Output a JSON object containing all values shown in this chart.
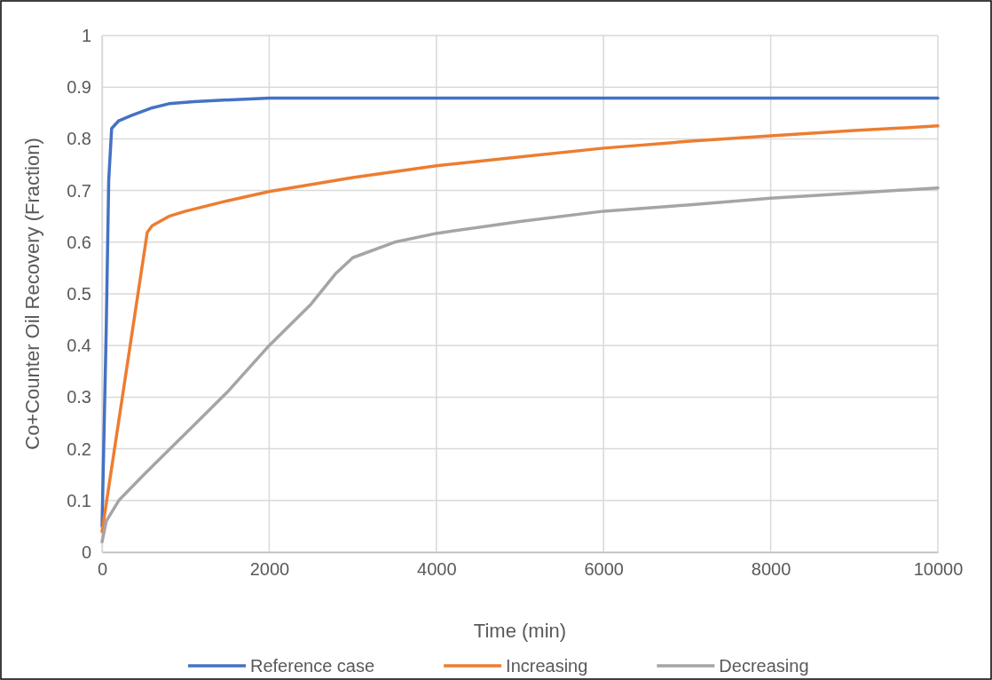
{
  "chart_data": {
    "type": "line",
    "xlabel": "Time (min)",
    "ylabel": "Co+Counter Oil Recovery (Fraction)",
    "xlim": [
      0,
      10000
    ],
    "xticks": [
      0,
      2000,
      4000,
      6000,
      8000,
      10000
    ],
    "ylim": [
      0,
      1
    ],
    "yticks": [
      0,
      0.1,
      0.2,
      0.3,
      0.4,
      0.5,
      0.6,
      0.7,
      0.8,
      0.9,
      1
    ],
    "grid": true,
    "legend": "bottom",
    "marker": "none",
    "line_style": "solid",
    "series": [
      {
        "name": "Reference case",
        "color": "#4472c4",
        "x": [
          0,
          50,
          80,
          115,
          200,
          350,
          600,
          800,
          1100,
          1450,
          2000,
          10000
        ],
        "values": [
          0.05,
          0.43,
          0.72,
          0.82,
          0.835,
          0.845,
          0.86,
          0.868,
          0.872,
          0.875,
          0.879,
          0.879
        ]
      },
      {
        "name": "Increasing",
        "color": "#ed7d31",
        "x": [
          0,
          541,
          600,
          800,
          1000,
          1500,
          2000,
          3000,
          4000,
          5000,
          6000,
          7000,
          8000,
          9000,
          10000
        ],
        "values": [
          0.04,
          0.619,
          0.632,
          0.65,
          0.66,
          0.68,
          0.698,
          0.725,
          0.748,
          0.765,
          0.782,
          0.795,
          0.806,
          0.816,
          0.825
        ]
      },
      {
        "name": "Decreasing",
        "color": "#a5a5a5",
        "x": [
          0,
          50,
          200,
          500,
          1000,
          1500,
          2000,
          2500,
          2800,
          3000,
          3500,
          4000,
          5000,
          6000,
          7000,
          8000,
          9000,
          10000
        ],
        "values": [
          0.02,
          0.06,
          0.1,
          0.15,
          0.23,
          0.31,
          0.4,
          0.48,
          0.54,
          0.57,
          0.6,
          0.617,
          0.64,
          0.66,
          0.672,
          0.685,
          0.695,
          0.705
        ]
      }
    ]
  }
}
